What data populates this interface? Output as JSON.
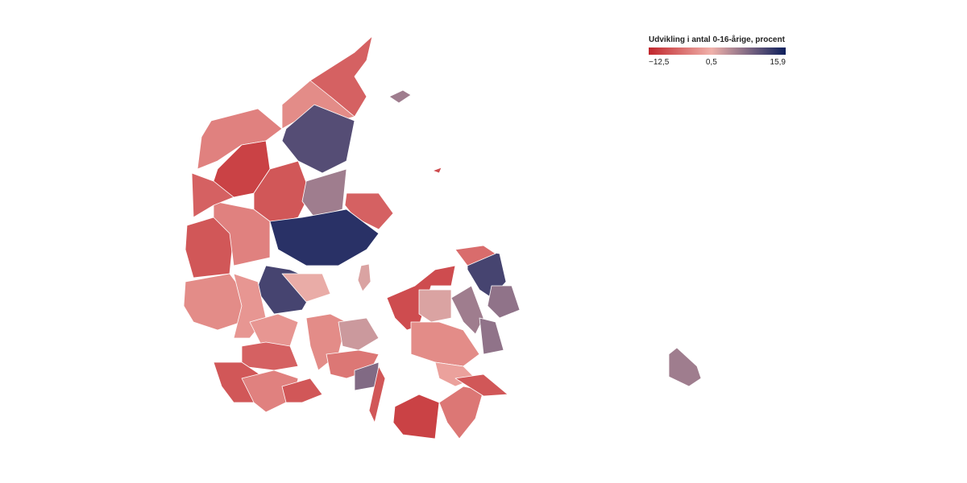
{
  "map": {
    "legend": {
      "title": "Udvikling i antal 0-16-årige, procent",
      "ticks": [
        {
          "value": -12.5,
          "label": "−12,5"
        },
        {
          "value": 0.5,
          "label": "0,5"
        },
        {
          "value": 15.9,
          "label": "15,9"
        }
      ],
      "colors": [
        "#c1272d",
        "#f0b1aa",
        "#0d1f5c"
      ]
    },
    "region_values": [
      -7,
      -3,
      -4,
      11,
      -10,
      -8,
      6,
      -7,
      14,
      -8,
      -4,
      -7,
      12,
      1,
      -3,
      -2,
      -2,
      -7,
      -8,
      -4,
      -8,
      -3,
      3,
      -5,
      8,
      -8,
      -9,
      2,
      6,
      12,
      -6,
      7,
      7,
      -3,
      -1,
      -10,
      -5,
      -8,
      6,
      6,
      -9,
      2
    ]
  }
}
